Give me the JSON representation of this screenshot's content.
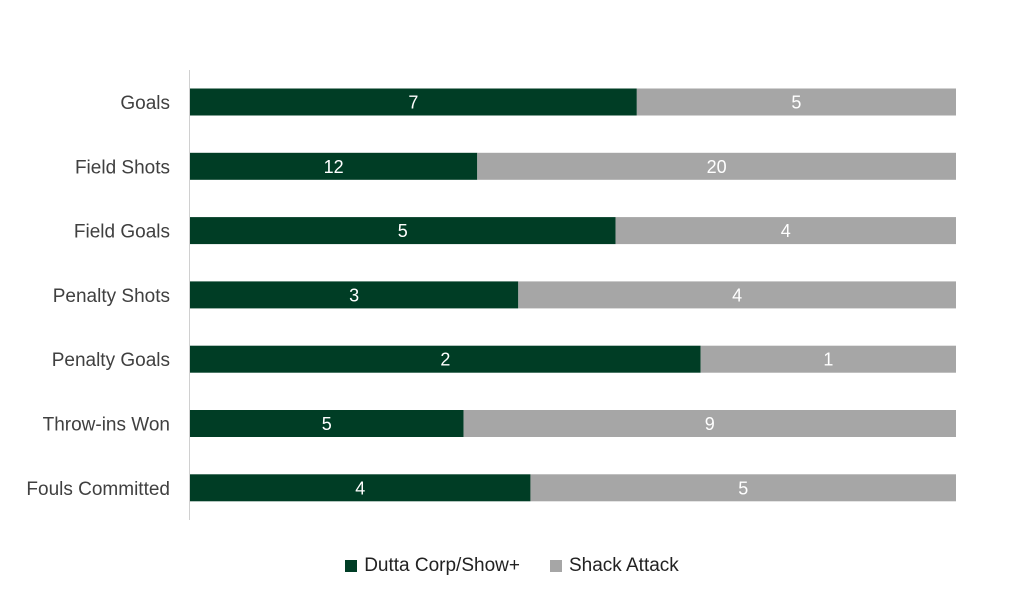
{
  "chart_data": {
    "type": "bar",
    "orientation": "horizontal",
    "stacked": "100%",
    "categories": [
      "Goals",
      "Field Shots",
      "Field Goals",
      "Penalty Shots",
      "Penalty Goals",
      "Throw-ins Won",
      "Fouls Committed"
    ],
    "series": [
      {
        "name": "Dutta Corp/Show+",
        "values": [
          7,
          12,
          5,
          3,
          2,
          5,
          4
        ],
        "color": "#003d25"
      },
      {
        "name": "Shack Attack",
        "values": [
          5,
          20,
          4,
          4,
          1,
          9,
          5
        ],
        "color": "#a6a6a6"
      }
    ],
    "grid": false,
    "legend_position": "bottom"
  }
}
